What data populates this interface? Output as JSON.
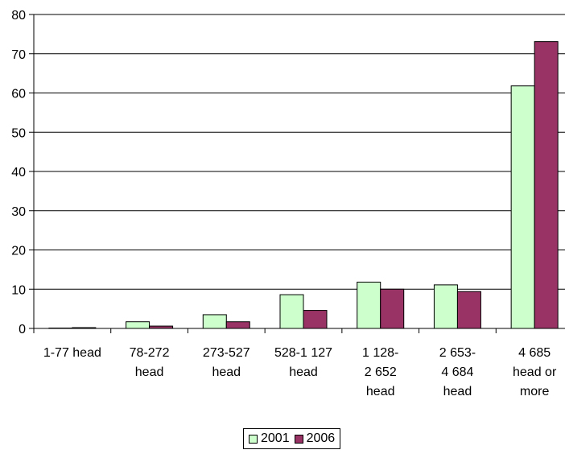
{
  "chart_data": {
    "type": "bar",
    "categories": [
      [
        "1-77 head"
      ],
      [
        "78-272",
        "head"
      ],
      [
        "273-527",
        "head"
      ],
      [
        "528-1 127",
        "head"
      ],
      [
        "1 128-",
        "2 652",
        "head"
      ],
      [
        "2 653-",
        "4 684",
        "head"
      ],
      [
        "4 685",
        "head or",
        "more"
      ]
    ],
    "series": [
      {
        "name": "2001",
        "color": "#ccffcc",
        "values": [
          0.1,
          1.7,
          3.5,
          8.6,
          11.8,
          11.1,
          61.8
        ]
      },
      {
        "name": "2006",
        "color": "#993366",
        "values": [
          0.2,
          0.6,
          1.7,
          4.6,
          10.0,
          9.4,
          73.1
        ]
      }
    ],
    "yticks": [
      0,
      10,
      20,
      30,
      40,
      50,
      60,
      70,
      80
    ],
    "ylim": [
      0,
      80
    ],
    "grid": true,
    "legend_position": "bottom"
  }
}
